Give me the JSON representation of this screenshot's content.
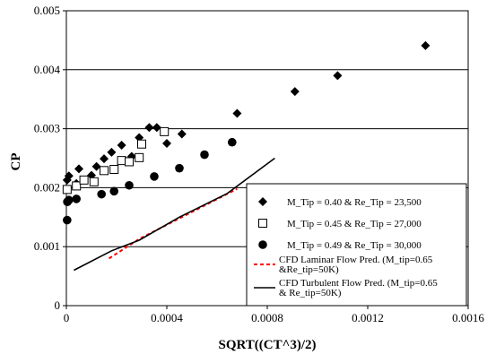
{
  "chart_data": {
    "type": "scatter",
    "title": "",
    "xlabel": "SQRT((CT^3)/2)",
    "ylabel": "CP",
    "xlim": [
      0,
      0.0016
    ],
    "ylim": [
      0,
      0.005
    ],
    "xticks": [
      0,
      0.0004,
      0.0008,
      0.0012,
      0.0016
    ],
    "xtick_labels": [
      "0",
      "0.0004",
      "0.0008",
      "0.0012",
      "0.0016"
    ],
    "yticks": [
      0,
      0.001,
      0.002,
      0.003,
      0.004,
      0.005
    ],
    "ytick_labels": [
      "0",
      "0.001",
      "0.002",
      "0.003",
      "0.004",
      "0.005"
    ],
    "grid": "horizontal",
    "legend_position": "right",
    "series": [
      {
        "name": "M_Tip = 0.40 & Re_Tip = 23,500",
        "marker": "diamond",
        "color": "#000000",
        "points": [
          [
            3e-06,
            0.00213
          ],
          [
            1e-05,
            0.0022
          ],
          [
            4e-05,
            0.00207
          ],
          [
            5e-05,
            0.00232
          ],
          [
            0.0001,
            0.00221
          ],
          [
            0.00012,
            0.00236
          ],
          [
            0.00015,
            0.00249
          ],
          [
            0.00018,
            0.0026
          ],
          [
            0.00022,
            0.00272
          ],
          [
            0.00026,
            0.00253
          ],
          [
            0.00029,
            0.00285
          ],
          [
            0.00033,
            0.00302
          ],
          [
            0.00036,
            0.00302
          ],
          [
            0.0004,
            0.00275
          ],
          [
            0.00046,
            0.00291
          ],
          [
            0.00068,
            0.00326
          ],
          [
            0.00091,
            0.00363
          ],
          [
            0.00108,
            0.0039
          ],
          [
            0.00143,
            0.00441
          ]
        ]
      },
      {
        "name": "M_Tip = 0.45 & Re_Tip = 27,000",
        "marker": "square",
        "color": "#000000",
        "points": [
          [
            3e-06,
            0.00197
          ],
          [
            4e-05,
            0.00203
          ],
          [
            7e-05,
            0.00213
          ],
          [
            0.00011,
            0.0021
          ],
          [
            0.00015,
            0.00229
          ],
          [
            0.00019,
            0.00231
          ],
          [
            0.00022,
            0.00246
          ],
          [
            0.00025,
            0.00244
          ],
          [
            0.00029,
            0.00251
          ],
          [
            0.0003,
            0.00274
          ],
          [
            0.00039,
            0.00295
          ]
        ]
      },
      {
        "name": "M_Tip = 0.49 & Re_Tip = 30,000",
        "marker": "circle",
        "color": "#000000",
        "points": [
          [
            3e-06,
            0.00145
          ],
          [
            4e-06,
            0.00176
          ],
          [
            1e-05,
            0.00179
          ],
          [
            4e-05,
            0.00181
          ],
          [
            0.00014,
            0.00189
          ],
          [
            0.00019,
            0.00194
          ],
          [
            0.00025,
            0.00204
          ],
          [
            0.00035,
            0.00219
          ],
          [
            0.00045,
            0.00233
          ],
          [
            0.00055,
            0.00256
          ],
          [
            0.00066,
            0.00277
          ]
        ]
      },
      {
        "name": "CFD Laminar Flow Pred. (M_tip=0.65 &Re_tip=50K)",
        "style": "dashed",
        "color": "#ff0000",
        "points": [
          [
            0.00017,
            0.0008
          ],
          [
            0.00029,
            0.00113
          ],
          [
            0.00068,
            0.00198
          ]
        ]
      },
      {
        "name": "CFD Turbulent Flow Pred. (M_tip=0.65 & Re_tip=50K)",
        "style": "solid",
        "color": "#000000",
        "points": [
          [
            3e-05,
            0.0006
          ],
          [
            0.00018,
            0.00093
          ],
          [
            0.00029,
            0.00111
          ],
          [
            0.00045,
            0.0015
          ],
          [
            0.00064,
            0.0019
          ],
          [
            0.00083,
            0.0025
          ]
        ]
      }
    ]
  }
}
